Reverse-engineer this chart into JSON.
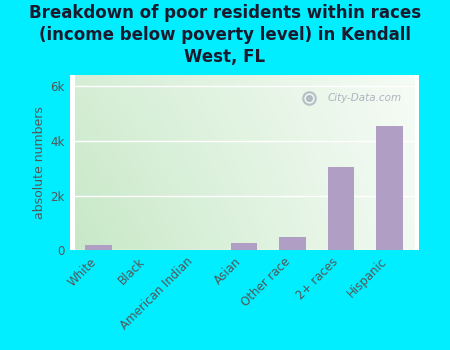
{
  "title": "Breakdown of poor residents within races\n(income below poverty level) in Kendall\nWest, FL",
  "ylabel": "absolute numbers",
  "categories": [
    "White",
    "Black",
    "American Indian",
    "Asian",
    "Other race",
    "2+ races",
    "Hispanic"
  ],
  "values": [
    200,
    15,
    0,
    280,
    480,
    3050,
    4550
  ],
  "bar_color": "#b09ec4",
  "bg_outer": "#00eeff",
  "bg_plot_tl": "#d8eeda",
  "bg_plot_tr": "#eef5ee",
  "bg_plot_bl": "#c8e8cc",
  "bg_plot_br": "#f5f5f0",
  "yticks": [
    0,
    2000,
    4000,
    6000
  ],
  "ytick_labels": [
    "0",
    "2k",
    "4k",
    "6k"
  ],
  "ylim": [
    0,
    6400
  ],
  "watermark": "City-Data.com",
  "title_fontsize": 12,
  "ylabel_fontsize": 9,
  "tick_fontsize": 8.5,
  "title_color": "#1a1a2e"
}
